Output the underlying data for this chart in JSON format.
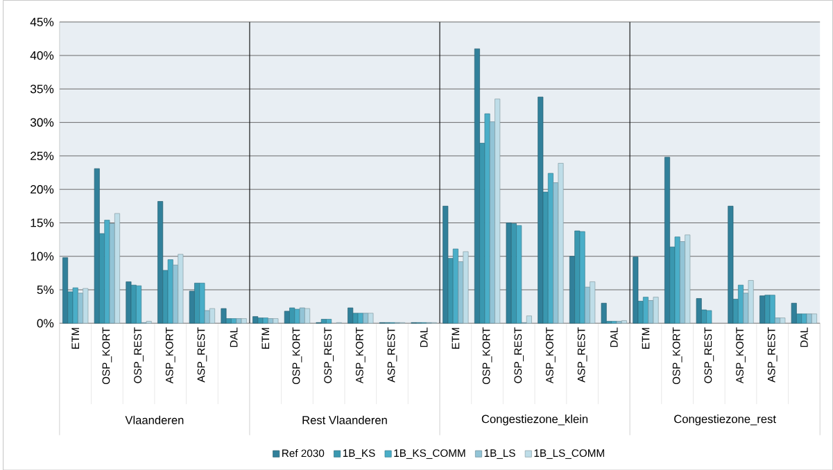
{
  "chart_data": [
    {
      "type": "bar",
      "xlabel": "Vlaanderen",
      "categories": [
        "ETM",
        "OSP_KORT",
        "OSP_REST",
        "ASP_KORT",
        "ASP_REST",
        "DAL"
      ],
      "ylim": [
        0,
        45
      ],
      "yticks": [
        {
          "value": 0,
          "label": "0%"
        },
        {
          "value": 5,
          "label": "5%"
        },
        {
          "value": 10,
          "label": "10%"
        },
        {
          "value": 15,
          "label": "15%"
        },
        {
          "value": 20,
          "label": "20%"
        },
        {
          "value": 25,
          "label": "25%"
        },
        {
          "value": 30,
          "label": "30%"
        },
        {
          "value": 35,
          "label": "35%"
        },
        {
          "value": 40,
          "label": "40%"
        },
        {
          "value": 45,
          "label": "45%"
        }
      ],
      "grid": "y",
      "legend": "bottom",
      "series": [
        {
          "name": "Ref 2030",
          "color": "#31809a",
          "values": [
            9.8,
            23.1,
            6.2,
            18.2,
            4.8,
            2.2
          ]
        },
        {
          "name": "1B_KS",
          "color": "#3a98b0",
          "values": [
            4.7,
            13.4,
            5.7,
            7.9,
            6.0,
            0.7
          ]
        },
        {
          "name": "1B_KS_COMM",
          "color": "#4aaec8",
          "values": [
            5.3,
            15.4,
            5.6,
            9.5,
            6.0,
            0.7
          ]
        },
        {
          "name": "1B_LS",
          "color": "#92c4d6",
          "values": [
            4.5,
            14.9,
            0.1,
            8.7,
            1.9,
            0.7
          ]
        },
        {
          "name": "1B_LS_COMM",
          "color": "#bedde8",
          "values": [
            5.2,
            16.4,
            0.3,
            10.3,
            2.2,
            0.7
          ]
        }
      ]
    },
    {
      "type": "bar",
      "xlabel": "Rest Vlaanderen",
      "categories": [
        "ETM",
        "OSP_KORT",
        "OSP_REST",
        "ASP_KORT",
        "ASP_REST",
        "DAL"
      ],
      "ylim": [
        0,
        45
      ],
      "yticks": [
        {
          "value": 0,
          "label": null
        },
        {
          "value": 5,
          "label": null
        },
        {
          "value": 10,
          "label": null
        },
        {
          "value": 15,
          "label": null
        },
        {
          "value": 20,
          "label": null
        },
        {
          "value": 25,
          "label": null
        },
        {
          "value": 30,
          "label": null
        },
        {
          "value": 35,
          "label": null
        },
        {
          "value": 40,
          "label": null
        },
        {
          "value": 45,
          "label": null
        }
      ],
      "grid": "y",
      "tick_labels": "x",
      "series": [
        {
          "color": "#31809a",
          "values": [
            1.0,
            1.8,
            0.1,
            2.3,
            0.1,
            0.1
          ]
        },
        {
          "color": "#3a98b0",
          "values": [
            0.8,
            2.3,
            0.6,
            1.5,
            0.1,
            0.1
          ]
        },
        {
          "color": "#4aaec8",
          "values": [
            0.8,
            2.1,
            0.6,
            1.5,
            0.1,
            0.1
          ]
        },
        {
          "color": "#92c4d6",
          "values": [
            0.7,
            2.3,
            null,
            1.5,
            0.1,
            0.1
          ]
        },
        {
          "color": "#bedde8",
          "values": [
            0.7,
            2.2,
            0.1,
            1.5,
            0.1,
            0.1
          ]
        }
      ]
    },
    {
      "type": "bar",
      "xlabel": "Congestiezone_klein",
      "categories": [
        "ETM",
        "OSP_KORT",
        "OSP_REST",
        "ASP_KORT",
        "ASP_REST",
        "DAL"
      ],
      "ylim": [
        0,
        45
      ],
      "yticks": [
        {
          "value": 0,
          "label": null
        },
        {
          "value": 5,
          "label": null
        },
        {
          "value": 10,
          "label": null
        },
        {
          "value": 15,
          "label": null
        },
        {
          "value": 20,
          "label": null
        },
        {
          "value": 25,
          "label": null
        },
        {
          "value": 30,
          "label": null
        },
        {
          "value": 35,
          "label": null
        },
        {
          "value": 40,
          "label": null
        },
        {
          "value": 45,
          "label": null
        }
      ],
      "grid": "y",
      "tick_labels": "x",
      "series": [
        {
          "color": "#31809a",
          "values": [
            17.5,
            41.0,
            15.0,
            33.8,
            10.0,
            3.0
          ]
        },
        {
          "color": "#3a98b0",
          "values": [
            9.7,
            26.9,
            14.9,
            19.6,
            13.8,
            0.3
          ]
        },
        {
          "color": "#4aaec8",
          "values": [
            11.1,
            31.3,
            14.6,
            22.4,
            13.7,
            0.3
          ]
        },
        {
          "color": "#92c4d6",
          "values": [
            9.2,
            30.1,
            0.1,
            21.0,
            5.4,
            0.3
          ]
        },
        {
          "color": "#bedde8",
          "values": [
            10.7,
            33.5,
            1.1,
            23.9,
            6.2,
            0.4
          ]
        }
      ]
    },
    {
      "type": "bar",
      "xlabel": "Congestiezone_rest",
      "categories": [
        "ETM",
        "OSP_KORT",
        "OSP_REST",
        "ASP_KORT",
        "ASP_REST",
        "DAL"
      ],
      "ylim": [
        0,
        45
      ],
      "yticks": [
        {
          "value": 0,
          "label": null
        },
        {
          "value": 5,
          "label": null
        },
        {
          "value": 10,
          "label": null
        },
        {
          "value": 15,
          "label": null
        },
        {
          "value": 20,
          "label": null
        },
        {
          "value": 25,
          "label": null
        },
        {
          "value": 30,
          "label": null
        },
        {
          "value": 35,
          "label": null
        },
        {
          "value": 40,
          "label": null
        },
        {
          "value": 45,
          "label": null
        }
      ],
      "grid": "y",
      "tick_labels": "x",
      "series": [
        {
          "color": "#31809a",
          "values": [
            9.9,
            24.8,
            3.7,
            17.5,
            4.1,
            3.0
          ]
        },
        {
          "color": "#3a98b0",
          "values": [
            3.3,
            11.4,
            2.0,
            3.6,
            4.2,
            1.4
          ]
        },
        {
          "color": "#4aaec8",
          "values": [
            3.9,
            12.9,
            1.9,
            5.7,
            4.2,
            1.4
          ]
        },
        {
          "color": "#92c4d6",
          "values": [
            3.4,
            12.2,
            null,
            4.5,
            0.8,
            1.4
          ]
        },
        {
          "color": "#bedde8",
          "values": [
            3.9,
            13.2,
            null,
            6.4,
            0.8,
            1.4
          ]
        }
      ]
    }
  ]
}
